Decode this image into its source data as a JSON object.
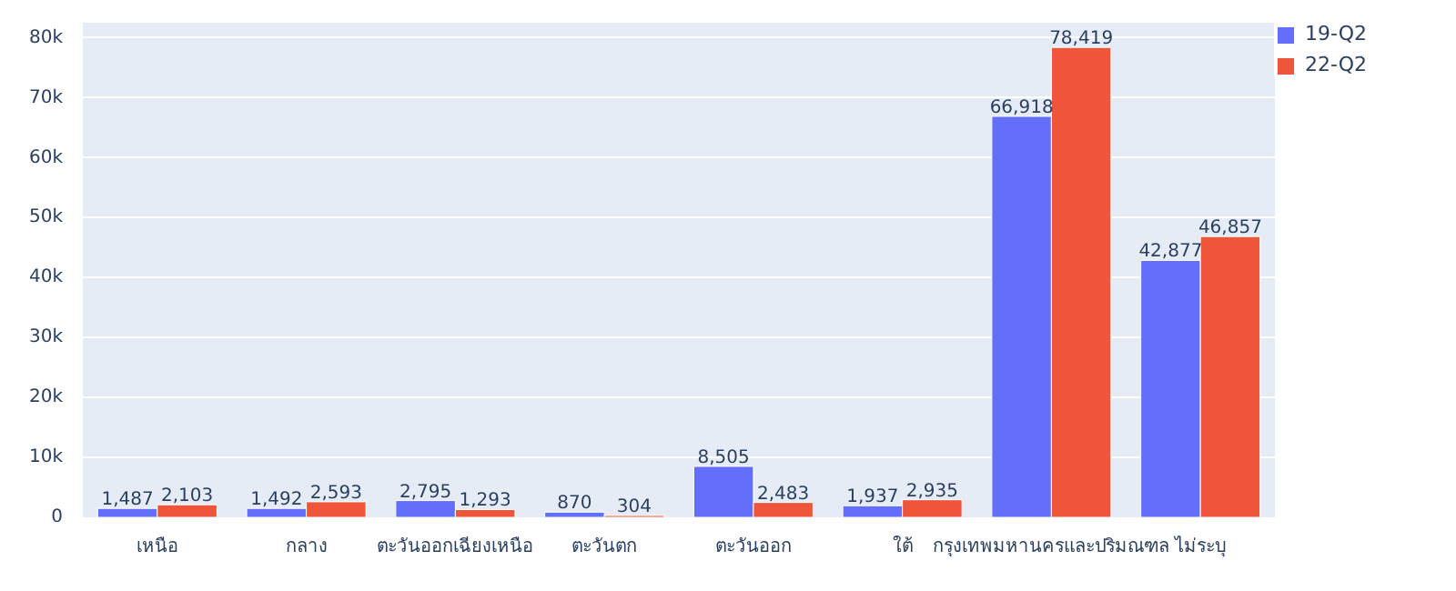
{
  "chart_data": {
    "type": "bar",
    "categories": [
      "เหนือ",
      "กลาง",
      "ตะวันออกเฉียงเหนือ",
      "ตะวันตก",
      "ตะวันออก",
      "ใต้",
      "กรุงเทพมหานครและปริมณฑล",
      "ไม่ระบุ"
    ],
    "series": [
      {
        "name": "19-Q2",
        "color": "#636efa",
        "values": [
          1487,
          1492,
          2795,
          870,
          8505,
          1937,
          66918,
          42877
        ],
        "value_labels": [
          "1,487",
          "1,492",
          "2,795",
          "870",
          "8,505",
          "1,937",
          "66,918",
          "42,877"
        ]
      },
      {
        "name": "22-Q2",
        "color": "#ef553b",
        "values": [
          2103,
          2593,
          1293,
          304,
          2483,
          2935,
          78419,
          46857
        ],
        "value_labels": [
          "2,103",
          "2,593",
          "1,293",
          "304",
          "2,483",
          "2,935",
          "78,419",
          "46,857"
        ]
      }
    ],
    "ylim": [
      0,
      82546
    ],
    "yticks": [
      0,
      {
        "value": 10000,
        "label": "10k"
      },
      {
        "value": 20000,
        "label": "20k"
      },
      {
        "value": 30000,
        "label": "30k"
      },
      {
        "value": 40000,
        "label": "40k"
      },
      {
        "value": 50000,
        "label": "50k"
      },
      {
        "value": 60000,
        "label": "60k"
      },
      {
        "value": 70000,
        "label": "70k"
      },
      {
        "value": 80000,
        "label": "80k"
      }
    ],
    "grid": "y",
    "legend": "top right"
  }
}
